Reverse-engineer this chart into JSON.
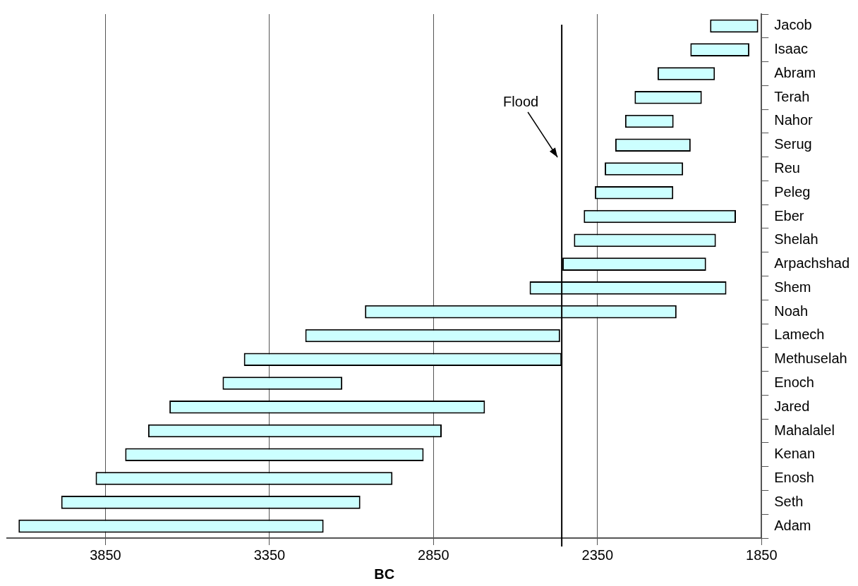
{
  "chart_data": {
    "type": "bar",
    "orientation": "horizontal",
    "xlabel": "BC",
    "categories": [
      "Jacob",
      "Isaac",
      "Abram",
      "Terah",
      "Nahor",
      "Serug",
      "Reu",
      "Peleg",
      "Eber",
      "Shelah",
      "Arpachshad",
      "Shem",
      "Noah",
      "Lamech",
      "Methuselah",
      "Enoch",
      "Jared",
      "Mahalalel",
      "Kenan",
      "Enosh",
      "Seth",
      "Adam"
    ],
    "base": [
      1860,
      1887,
      1992,
      2032,
      2118,
      2066,
      2089,
      2119,
      1928,
      1989,
      2019,
      1957,
      2109,
      2464,
      2459,
      3128,
      2693,
      2825,
      2880,
      2975,
      3073,
      3185
    ],
    "values": [
      147,
      180,
      175,
      205,
      148,
      230,
      239,
      239,
      464,
      433,
      438,
      600,
      950,
      777,
      969,
      365,
      962,
      895,
      910,
      905,
      912,
      930
    ],
    "color": "#ccffff",
    "xlim": [
      4150,
      1850
    ],
    "xticks": [
      3850,
      3350,
      2850,
      2350,
      1850
    ],
    "grid": "x",
    "legend": false,
    "ref_lines": [
      {
        "axis": "x",
        "value": 2459,
        "label": "Flood",
        "color": "#000000"
      }
    ]
  }
}
